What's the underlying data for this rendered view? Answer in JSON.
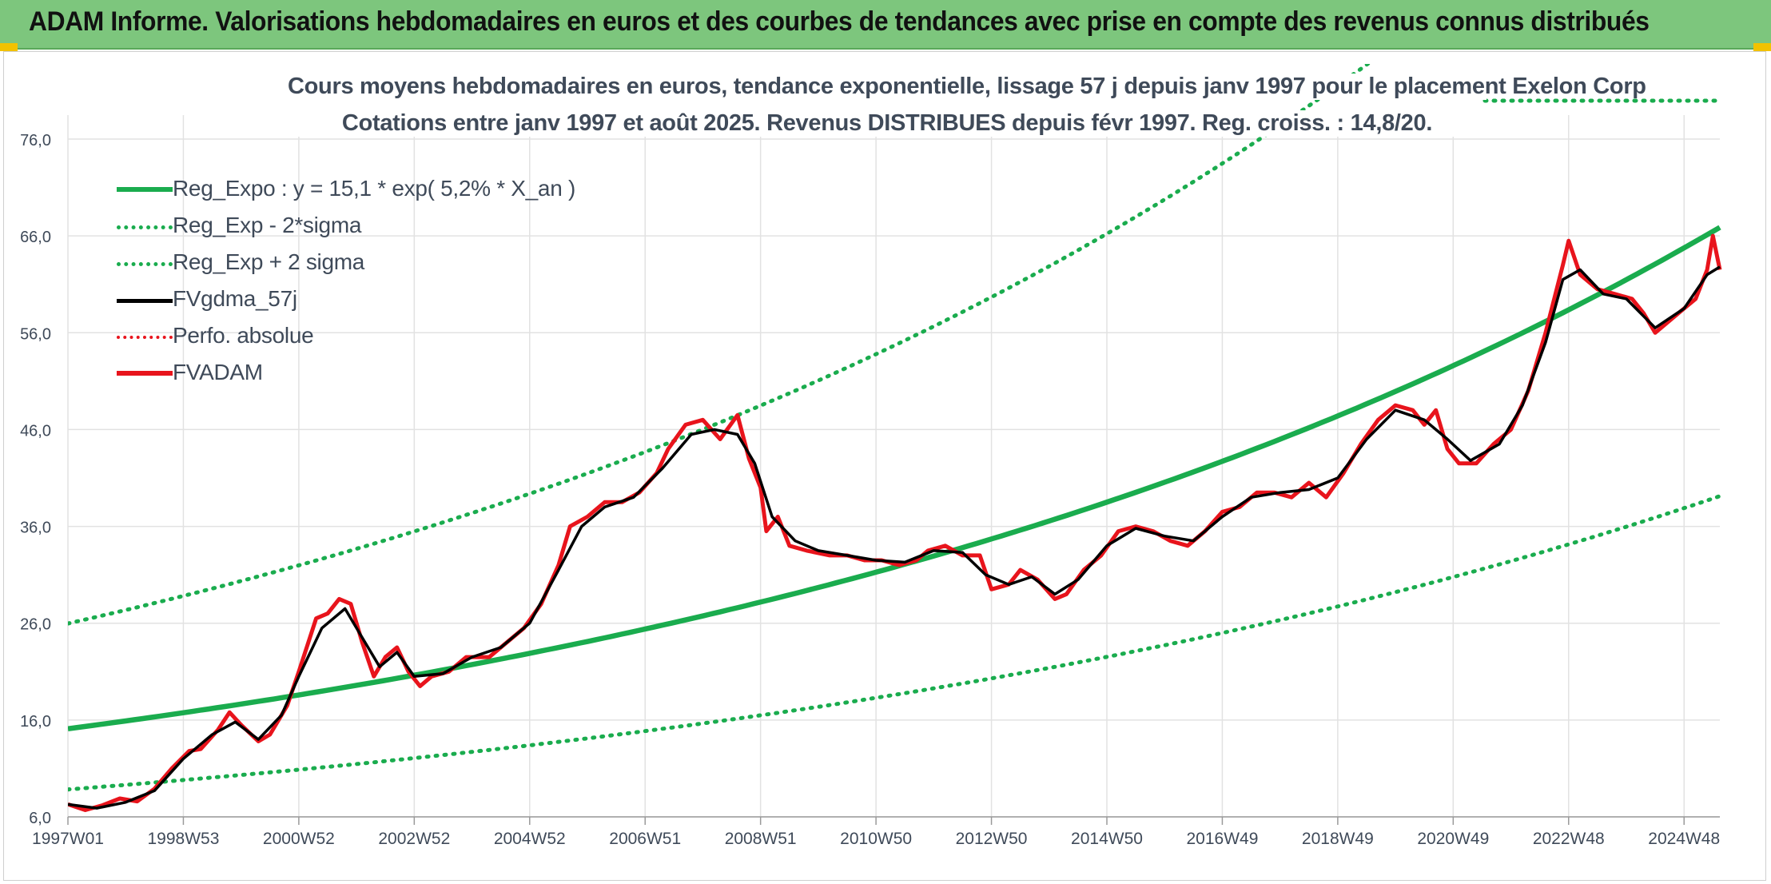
{
  "banner": {
    "title": "ADAM Informe. Valorisations hebdomadaires en euros et des courbes de tendances avec prise en compte des revenus connus distribués"
  },
  "chart_data": {
    "type": "line",
    "title": "Cours moyens hebdomadaires en euros, tendance exponentielle, lissage 57 j depuis janv 1997 pour le placement Exelon Corp",
    "subtitle": "Cotations entre janv 1997 et août 2025. Revenus DISTRIBUES depuis févr 1997. Reg. croiss. : 14,8/20.",
    "xlabel": "",
    "ylabel": "",
    "ylim": [
      6,
      76
    ],
    "y_ticks": [
      "6,0",
      "16,0",
      "26,0",
      "36,0",
      "46,0",
      "56,0",
      "66,0",
      "76,0"
    ],
    "x_ticks": [
      "1997W01",
      "1998W53",
      "2000W52",
      "2002W52",
      "2004W52",
      "2006W51",
      "2008W51",
      "2010W50",
      "2012W50",
      "2014W50",
      "2016W49",
      "2018W49",
      "2020W49",
      "2022W48",
      "2024W48"
    ],
    "x_tick_years": [
      1997.0,
      1999.0,
      2001.0,
      2003.0,
      2005.0,
      2007.0,
      2009.0,
      2011.0,
      2013.0,
      2015.0,
      2017.0,
      2019.0,
      2021.0,
      2023.0,
      2025.0
    ],
    "x_range_years": [
      1997.0,
      2025.62
    ],
    "grid": true,
    "legend_position": "top-left",
    "legend": [
      {
        "label": "Reg_Expo : y = 15,1 * exp( 5,2% *  X_an )",
        "color": "#1aac4e",
        "style": "solid",
        "width": 6
      },
      {
        "label": "Reg_Exp - 2*sigma",
        "color": "#1aac4e",
        "style": "dotted",
        "width": 4
      },
      {
        "label": "Reg_Exp + 2 sigma",
        "color": "#1aac4e",
        "style": "dotted",
        "width": 4
      },
      {
        "label": "FVgdma_57j",
        "color": "#000000",
        "style": "solid",
        "width": 4
      },
      {
        "label": "Perfo. absolue",
        "color": "#e8141c",
        "style": "dotted",
        "width": 3
      },
      {
        "label": "FVADAM",
        "color": "#e8141c",
        "style": "solid",
        "width": 5
      }
    ],
    "regression": {
      "a": 15.1,
      "rate": 0.052,
      "upper_factor": 1.72,
      "lower_factor": 0.585
    },
    "fvadam": {
      "name": "FVADAM",
      "color": "#e8141c",
      "points": [
        [
          1997.0,
          7.3
        ],
        [
          1997.3,
          6.7
        ],
        [
          1997.6,
          7.2
        ],
        [
          1997.9,
          7.9
        ],
        [
          1998.2,
          7.6
        ],
        [
          1998.5,
          8.9
        ],
        [
          1998.8,
          11.0
        ],
        [
          1999.1,
          12.8
        ],
        [
          1999.3,
          13.0
        ],
        [
          1999.6,
          15.0
        ],
        [
          1999.8,
          16.8
        ],
        [
          2000.0,
          15.5
        ],
        [
          2000.3,
          13.8
        ],
        [
          2000.5,
          14.5
        ],
        [
          2000.8,
          17.5
        ],
        [
          2001.0,
          21.0
        ],
        [
          2001.3,
          26.5
        ],
        [
          2001.5,
          27.0
        ],
        [
          2001.7,
          28.5
        ],
        [
          2001.9,
          28.0
        ],
        [
          2002.1,
          24.0
        ],
        [
          2002.3,
          20.5
        ],
        [
          2002.5,
          22.5
        ],
        [
          2002.7,
          23.5
        ],
        [
          2002.9,
          21.0
        ],
        [
          2003.1,
          19.5
        ],
        [
          2003.3,
          20.5
        ],
        [
          2003.6,
          21.0
        ],
        [
          2003.9,
          22.5
        ],
        [
          2004.3,
          22.5
        ],
        [
          2004.6,
          24.0
        ],
        [
          2004.9,
          25.5
        ],
        [
          2005.2,
          28.0
        ],
        [
          2005.5,
          32.0
        ],
        [
          2005.7,
          36.0
        ],
        [
          2006.0,
          37.0
        ],
        [
          2006.3,
          38.5
        ],
        [
          2006.6,
          38.5
        ],
        [
          2006.9,
          39.5
        ],
        [
          2007.2,
          41.5
        ],
        [
          2007.4,
          44.0
        ],
        [
          2007.7,
          46.5
        ],
        [
          2008.0,
          47.0
        ],
        [
          2008.3,
          45.0
        ],
        [
          2008.6,
          47.5
        ],
        [
          2008.8,
          43.0
        ],
        [
          2009.0,
          40.0
        ],
        [
          2009.1,
          35.5
        ],
        [
          2009.3,
          37.0
        ],
        [
          2009.5,
          34.0
        ],
        [
          2009.8,
          33.5
        ],
        [
          2010.2,
          33.0
        ],
        [
          2010.5,
          33.0
        ],
        [
          2010.8,
          32.5
        ],
        [
          2011.1,
          32.5
        ],
        [
          2011.4,
          32.0
        ],
        [
          2011.7,
          32.5
        ],
        [
          2011.9,
          33.5
        ],
        [
          2012.2,
          34.0
        ],
        [
          2012.5,
          33.0
        ],
        [
          2012.8,
          33.0
        ],
        [
          2013.0,
          29.5
        ],
        [
          2013.3,
          30.0
        ],
        [
          2013.5,
          31.5
        ],
        [
          2013.8,
          30.5
        ],
        [
          2014.1,
          28.5
        ],
        [
          2014.3,
          29.0
        ],
        [
          2014.6,
          31.5
        ],
        [
          2014.9,
          33.0
        ],
        [
          2015.2,
          35.5
        ],
        [
          2015.5,
          36.0
        ],
        [
          2015.8,
          35.5
        ],
        [
          2016.1,
          34.5
        ],
        [
          2016.4,
          34.0
        ],
        [
          2016.7,
          35.5
        ],
        [
          2017.0,
          37.5
        ],
        [
          2017.3,
          38.0
        ],
        [
          2017.6,
          39.5
        ],
        [
          2017.9,
          39.5
        ],
        [
          2018.2,
          39.0
        ],
        [
          2018.5,
          40.5
        ],
        [
          2018.8,
          39.0
        ],
        [
          2019.1,
          41.5
        ],
        [
          2019.4,
          44.5
        ],
        [
          2019.7,
          47.0
        ],
        [
          2020.0,
          48.5
        ],
        [
          2020.3,
          48.0
        ],
        [
          2020.5,
          46.5
        ],
        [
          2020.7,
          48.0
        ],
        [
          2020.9,
          44.0
        ],
        [
          2021.1,
          42.5
        ],
        [
          2021.4,
          42.5
        ],
        [
          2021.7,
          44.5
        ],
        [
          2022.0,
          46.0
        ],
        [
          2022.3,
          50.0
        ],
        [
          2022.6,
          56.0
        ],
        [
          2022.9,
          63.0
        ],
        [
          2023.0,
          65.5
        ],
        [
          2023.2,
          62.0
        ],
        [
          2023.5,
          60.5
        ],
        [
          2023.8,
          60.0
        ],
        [
          2024.1,
          59.5
        ],
        [
          2024.3,
          58.0
        ],
        [
          2024.5,
          56.0
        ],
        [
          2024.8,
          57.5
        ],
        [
          2025.0,
          58.5
        ],
        [
          2025.2,
          59.5
        ],
        [
          2025.4,
          62.5
        ],
        [
          2025.5,
          66.0
        ],
        [
          2025.62,
          62.5
        ]
      ]
    },
    "fvgdma": {
      "name": "FVgdma_57j",
      "color": "#000000",
      "points": [
        [
          1997.0,
          7.3
        ],
        [
          1997.5,
          6.9
        ],
        [
          1998.0,
          7.5
        ],
        [
          1998.5,
          8.7
        ],
        [
          1999.0,
          12.0
        ],
        [
          1999.5,
          14.5
        ],
        [
          1999.9,
          15.8
        ],
        [
          2000.3,
          14.0
        ],
        [
          2000.7,
          16.5
        ],
        [
          2001.0,
          20.5
        ],
        [
          2001.4,
          25.5
        ],
        [
          2001.8,
          27.5
        ],
        [
          2002.1,
          24.5
        ],
        [
          2002.4,
          21.5
        ],
        [
          2002.7,
          23.0
        ],
        [
          2003.0,
          20.5
        ],
        [
          2003.5,
          20.8
        ],
        [
          2004.0,
          22.5
        ],
        [
          2004.5,
          23.5
        ],
        [
          2005.0,
          26.0
        ],
        [
          2005.5,
          31.5
        ],
        [
          2005.9,
          36.0
        ],
        [
          2006.3,
          38.0
        ],
        [
          2006.8,
          39.0
        ],
        [
          2007.3,
          42.0
        ],
        [
          2007.8,
          45.5
        ],
        [
          2008.2,
          46.0
        ],
        [
          2008.6,
          45.5
        ],
        [
          2008.9,
          42.5
        ],
        [
          2009.2,
          37.0
        ],
        [
          2009.6,
          34.5
        ],
        [
          2010.0,
          33.5
        ],
        [
          2010.5,
          33.0
        ],
        [
          2011.0,
          32.5
        ],
        [
          2011.5,
          32.3
        ],
        [
          2012.0,
          33.5
        ],
        [
          2012.5,
          33.3
        ],
        [
          2012.9,
          31.0
        ],
        [
          2013.3,
          30.0
        ],
        [
          2013.7,
          30.8
        ],
        [
          2014.1,
          29.0
        ],
        [
          2014.5,
          30.5
        ],
        [
          2015.0,
          34.0
        ],
        [
          2015.5,
          35.8
        ],
        [
          2016.0,
          35.0
        ],
        [
          2016.5,
          34.5
        ],
        [
          2017.0,
          37.0
        ],
        [
          2017.5,
          39.0
        ],
        [
          2018.0,
          39.5
        ],
        [
          2018.5,
          39.8
        ],
        [
          2019.0,
          41.0
        ],
        [
          2019.5,
          45.0
        ],
        [
          2020.0,
          48.0
        ],
        [
          2020.5,
          47.0
        ],
        [
          2020.9,
          45.0
        ],
        [
          2021.3,
          42.8
        ],
        [
          2021.8,
          44.5
        ],
        [
          2022.2,
          48.5
        ],
        [
          2022.6,
          55.0
        ],
        [
          2022.9,
          61.5
        ],
        [
          2023.2,
          62.5
        ],
        [
          2023.6,
          60.0
        ],
        [
          2024.0,
          59.5
        ],
        [
          2024.5,
          56.5
        ],
        [
          2025.0,
          58.5
        ],
        [
          2025.4,
          62.0
        ],
        [
          2025.62,
          62.8
        ]
      ]
    }
  }
}
